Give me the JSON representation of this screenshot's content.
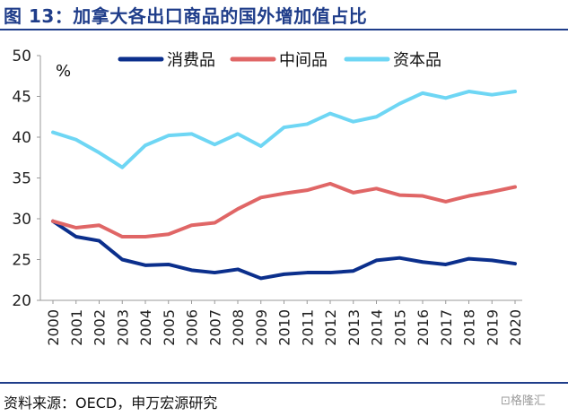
{
  "title": "图 13：加拿大各出口商品的国外增加值占比",
  "source": "资料来源：OECD，申万宏源研究",
  "watermark": "⊡格隆汇",
  "colors": {
    "title": "#1F3D8A",
    "consumer": "#0B2F8C",
    "intermediate": "#E06666",
    "capital": "#6ED6F4"
  },
  "chart_data": {
    "type": "line",
    "title": "",
    "unit_label": "%",
    "xlabel": "",
    "ylabel": "",
    "ylim": [
      20,
      50
    ],
    "yticks": [
      20,
      25,
      30,
      35,
      40,
      45,
      50
    ],
    "grid": false,
    "legend": "top",
    "categories": [
      "2000",
      "2001",
      "2002",
      "2003",
      "2004",
      "2005",
      "2006",
      "2007",
      "2008",
      "2009",
      "2010",
      "2011",
      "2012",
      "2013",
      "2014",
      "2015",
      "2016",
      "2017",
      "2018",
      "2019",
      "2020"
    ],
    "series": [
      {
        "name": "消费品",
        "color": "#0B2F8C",
        "values": [
          29.7,
          27.8,
          27.3,
          25.0,
          24.3,
          24.4,
          23.7,
          23.4,
          23.8,
          22.7,
          23.2,
          23.4,
          23.4,
          23.6,
          24.9,
          25.2,
          24.7,
          24.4,
          25.1,
          24.9,
          24.5
        ]
      },
      {
        "name": "中间品",
        "color": "#E06666",
        "values": [
          29.7,
          28.9,
          29.2,
          27.8,
          27.8,
          28.1,
          29.2,
          29.5,
          31.2,
          32.6,
          33.1,
          33.5,
          34.3,
          33.2,
          33.7,
          32.9,
          32.8,
          32.1,
          32.8,
          33.3,
          33.9
        ]
      },
      {
        "name": "资本品",
        "color": "#6ED6F4",
        "values": [
          40.6,
          39.7,
          38.1,
          36.3,
          39.0,
          40.2,
          40.4,
          39.1,
          40.4,
          38.9,
          41.2,
          41.6,
          42.9,
          41.9,
          42.5,
          44.1,
          45.4,
          44.8,
          45.6,
          45.2,
          45.6
        ]
      }
    ]
  }
}
